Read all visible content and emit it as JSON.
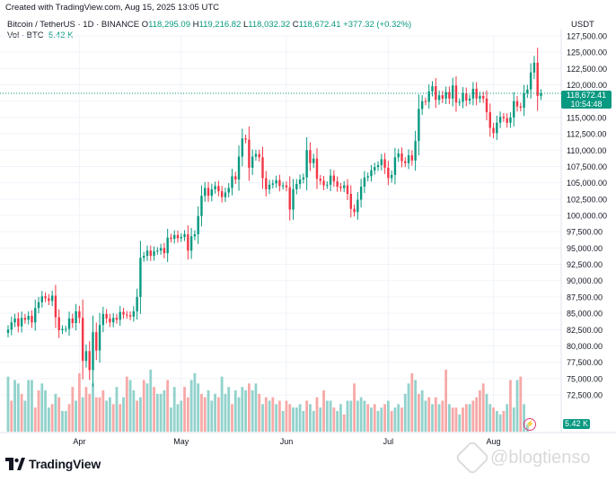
{
  "header": {
    "created": "Created with TradingView.com, Aug 15, 2025 13:05 UTC",
    "symbol": "Bitcoin / TetherUS · 1D · BINANCE",
    "o_label": "O",
    "o_value": "118,295.09",
    "h_label": "H",
    "h_value": "119,216.82",
    "l_label": "L",
    "l_value": "118,032.32",
    "c_label": "C",
    "c_value": "118,672.41",
    "change": "+377.32 (+0.32%)",
    "vol_label": "Vol · BTC",
    "vol_value": "5.42 K"
  },
  "axis": {
    "currency": "USDT",
    "price_tag": "118,672.41",
    "countdown": "10:54:48",
    "volume_tag": "5.42 K"
  },
  "brand": {
    "name": "TradingView",
    "logo_icon": "tradingview-logo-icon"
  },
  "watermark": {
    "text": "@blogtienso",
    "icon": "blogtienso-logo-icon"
  },
  "colors": {
    "up": "#089981",
    "down": "#f23645",
    "up_vol": "#92d2cc",
    "down_vol": "#f7a9a7",
    "grid": "#f0f3fa"
  },
  "chart_data": {
    "type": "candlestick",
    "symbol": "BTCUSDT",
    "interval": "1D",
    "y_ticks": [
      72500,
      75000,
      77500,
      80000,
      82500,
      85000,
      87500,
      90000,
      92500,
      95000,
      97500,
      100000,
      102500,
      105000,
      107500,
      110000,
      112500,
      115000,
      117500,
      120000,
      122500,
      125000,
      127500
    ],
    "y_tick_labels": [
      "72,500.00",
      "75,000.00",
      "77,500.00",
      "80,000.00",
      "82,500.00",
      "85,000.00",
      "87,500.00",
      "90,000.00",
      "92,500.00",
      "95,000.00",
      "97,500.00",
      "100,000.00",
      "102,500.00",
      "105,000.00",
      "107,500.00",
      "110,000.00",
      "112,500.00",
      "115,000.00",
      "117,500.00",
      "120,000.00",
      "122,500.00",
      "125,000.00",
      "127,500.00"
    ],
    "x_labels": [
      {
        "label": "Apr",
        "index": 21
      },
      {
        "label": "May",
        "index": 51
      },
      {
        "label": "Jun",
        "index": 82
      },
      {
        "label": "Jul",
        "index": 112
      },
      {
        "label": "Aug",
        "index": 143
      }
    ],
    "closes": [
      82500,
      83600,
      84200,
      83000,
      84300,
      84000,
      84600,
      83600,
      85800,
      86700,
      87600,
      87300,
      86900,
      87700,
      84400,
      82400,
      82600,
      82600,
      84200,
      83500,
      85300,
      84300,
      77700,
      79200,
      76300,
      82100,
      79300,
      83200,
      84900,
      84200,
      83600,
      84300,
      84000,
      85200,
      84800,
      84700,
      84500,
      85300,
      87500,
      93500,
      93800,
      94600,
      93800,
      94500,
      94600,
      95000,
      94200,
      96600,
      96400,
      97000,
      96500,
      96700,
      97100,
      94600,
      96800,
      97100,
      99900,
      103000,
      104200,
      103000,
      104000,
      104500,
      103700,
      102800,
      103500,
      104200,
      106000,
      105500,
      109000,
      111800,
      111600,
      107300,
      109000,
      109400,
      108900,
      105700,
      104000,
      104700,
      104900,
      105400,
      104500,
      104600,
      104300,
      100900,
      104000,
      104800,
      105500,
      105800,
      110000,
      108000,
      108700,
      105600,
      105300,
      104600,
      104700,
      106100,
      105200,
      104400,
      104200,
      104600,
      103300,
      101000,
      100500,
      102400,
      104400,
      105800,
      106000,
      106900,
      107400,
      107700,
      108600,
      107300,
      105700,
      106200,
      108900,
      109500,
      108300,
      108000,
      109200,
      108400,
      111400,
      116300,
      117500,
      117400,
      119000,
      119800,
      117700,
      118400,
      117900,
      118900,
      117900,
      119900,
      117300,
      117400,
      118700,
      117600,
      117900,
      119400,
      117900,
      118300,
      117900,
      115800,
      113400,
      112600,
      114200,
      115100,
      114900,
      114200,
      115000,
      117500,
      116700,
      116500,
      118700,
      119300,
      121900,
      123400,
      118300,
      118700
    ],
    "volume": [
      {
        "up": true,
        "v": 16
      },
      {
        "up": false,
        "v": 9
      },
      {
        "up": true,
        "v": 15
      },
      {
        "up": true,
        "v": 14
      },
      {
        "up": false,
        "v": 11
      },
      {
        "up": true,
        "v": 9
      },
      {
        "up": true,
        "v": 15
      },
      {
        "up": true,
        "v": 15
      },
      {
        "up": false,
        "v": 7
      },
      {
        "up": false,
        "v": 12
      },
      {
        "up": true,
        "v": 14
      },
      {
        "up": true,
        "v": 12
      },
      {
        "up": true,
        "v": 7
      },
      {
        "up": false,
        "v": 8
      },
      {
        "up": true,
        "v": 11
      },
      {
        "up": false,
        "v": 10
      },
      {
        "up": true,
        "v": 6
      },
      {
        "up": true,
        "v": 6
      },
      {
        "up": false,
        "v": 8
      },
      {
        "up": false,
        "v": 13
      },
      {
        "up": true,
        "v": 9
      },
      {
        "up": false,
        "v": 17
      },
      {
        "up": true,
        "v": 10
      },
      {
        "up": false,
        "v": 13
      },
      {
        "up": false,
        "v": 11
      },
      {
        "up": true,
        "v": 14
      },
      {
        "up": false,
        "v": 10
      },
      {
        "up": false,
        "v": 10
      },
      {
        "up": false,
        "v": 12
      },
      {
        "up": true,
        "v": 9
      },
      {
        "up": true,
        "v": 10
      },
      {
        "up": false,
        "v": 8
      },
      {
        "up": true,
        "v": 13
      },
      {
        "up": false,
        "v": 8
      },
      {
        "up": true,
        "v": 10
      },
      {
        "up": false,
        "v": 16
      },
      {
        "up": true,
        "v": 15
      },
      {
        "up": true,
        "v": 12
      },
      {
        "up": false,
        "v": 9
      },
      {
        "up": true,
        "v": 10
      },
      {
        "up": false,
        "v": 15
      },
      {
        "up": true,
        "v": 14
      },
      {
        "up": true,
        "v": 18
      },
      {
        "up": false,
        "v": 13
      },
      {
        "up": true,
        "v": 11
      },
      {
        "up": true,
        "v": 11
      },
      {
        "up": true,
        "v": 12
      },
      {
        "up": false,
        "v": 15
      },
      {
        "up": true,
        "v": 7
      },
      {
        "up": true,
        "v": 13
      },
      {
        "up": true,
        "v": 8
      },
      {
        "up": true,
        "v": 9
      },
      {
        "up": false,
        "v": 13
      },
      {
        "up": false,
        "v": 10
      },
      {
        "up": true,
        "v": 15
      },
      {
        "up": true,
        "v": 17
      },
      {
        "up": true,
        "v": 14
      },
      {
        "up": false,
        "v": 11
      },
      {
        "up": false,
        "v": 10
      },
      {
        "up": true,
        "v": 12
      },
      {
        "up": true,
        "v": 9
      },
      {
        "up": true,
        "v": 11
      },
      {
        "up": false,
        "v": 10
      },
      {
        "up": true,
        "v": 16
      },
      {
        "up": true,
        "v": 11
      },
      {
        "up": true,
        "v": 13
      },
      {
        "up": false,
        "v": 8
      },
      {
        "up": true,
        "v": 12
      },
      {
        "up": true,
        "v": 10
      },
      {
        "up": true,
        "v": 13
      },
      {
        "up": true,
        "v": 12
      },
      {
        "up": false,
        "v": 14
      },
      {
        "up": true,
        "v": 12
      },
      {
        "up": true,
        "v": 14
      },
      {
        "up": false,
        "v": 11
      },
      {
        "up": true,
        "v": 8
      },
      {
        "up": false,
        "v": 10
      },
      {
        "up": true,
        "v": 9
      },
      {
        "up": false,
        "v": 10
      },
      {
        "up": true,
        "v": 8
      },
      {
        "up": false,
        "v": 9
      },
      {
        "up": true,
        "v": 6
      },
      {
        "up": false,
        "v": 9
      },
      {
        "up": false,
        "v": 8
      },
      {
        "up": true,
        "v": 7
      },
      {
        "up": true,
        "v": 7
      },
      {
        "up": true,
        "v": 8
      },
      {
        "up": true,
        "v": 6
      },
      {
        "up": false,
        "v": 9
      },
      {
        "up": true,
        "v": 8
      },
      {
        "up": true,
        "v": 6
      },
      {
        "up": false,
        "v": 10
      },
      {
        "up": true,
        "v": 7
      },
      {
        "up": false,
        "v": 12
      },
      {
        "up": true,
        "v": 9
      },
      {
        "up": true,
        "v": 9
      },
      {
        "up": false,
        "v": 7
      },
      {
        "up": true,
        "v": 6
      },
      {
        "up": true,
        "v": 8
      },
      {
        "up": false,
        "v": 5
      },
      {
        "up": true,
        "v": 9
      },
      {
        "up": true,
        "v": 9
      },
      {
        "up": false,
        "v": 14
      },
      {
        "up": true,
        "v": 9
      },
      {
        "up": true,
        "v": 10
      },
      {
        "up": true,
        "v": 9
      },
      {
        "up": false,
        "v": 8
      },
      {
        "up": true,
        "v": 7
      },
      {
        "up": false,
        "v": 8
      },
      {
        "up": true,
        "v": 6
      },
      {
        "up": true,
        "v": 7
      },
      {
        "up": false,
        "v": 8
      },
      {
        "up": true,
        "v": 9
      },
      {
        "up": false,
        "v": 6
      },
      {
        "up": true,
        "v": 7
      },
      {
        "up": true,
        "v": 8
      },
      {
        "up": false,
        "v": 7
      },
      {
        "up": true,
        "v": 11
      },
      {
        "up": true,
        "v": 14
      },
      {
        "up": false,
        "v": 17
      },
      {
        "up": true,
        "v": 15
      },
      {
        "up": false,
        "v": 11
      },
      {
        "up": true,
        "v": 12
      },
      {
        "up": true,
        "v": 9
      },
      {
        "up": false,
        "v": 10
      },
      {
        "up": true,
        "v": 8
      },
      {
        "up": false,
        "v": 10
      },
      {
        "up": true,
        "v": 8
      },
      {
        "up": false,
        "v": 9
      },
      {
        "up": false,
        "v": 18
      },
      {
        "up": true,
        "v": 8
      },
      {
        "up": false,
        "v": 7
      },
      {
        "up": false,
        "v": 7
      },
      {
        "up": true,
        "v": 5
      },
      {
        "up": false,
        "v": 7
      },
      {
        "up": false,
        "v": 8
      },
      {
        "up": true,
        "v": 8
      },
      {
        "up": false,
        "v": 9
      },
      {
        "up": false,
        "v": 10
      },
      {
        "up": false,
        "v": 12
      },
      {
        "up": false,
        "v": 14
      },
      {
        "up": true,
        "v": 11
      },
      {
        "up": true,
        "v": 8
      },
      {
        "up": false,
        "v": 7
      },
      {
        "up": true,
        "v": 6
      },
      {
        "up": true,
        "v": 5
      },
      {
        "up": false,
        "v": 6
      },
      {
        "up": true,
        "v": 8
      },
      {
        "up": false,
        "v": 15
      },
      {
        "up": true,
        "v": 7
      },
      {
        "up": true,
        "v": 15
      },
      {
        "up": false,
        "v": 16
      },
      {
        "up": true,
        "v": 8
      },
      {
        "up": true,
        "v": 2
      }
    ]
  }
}
